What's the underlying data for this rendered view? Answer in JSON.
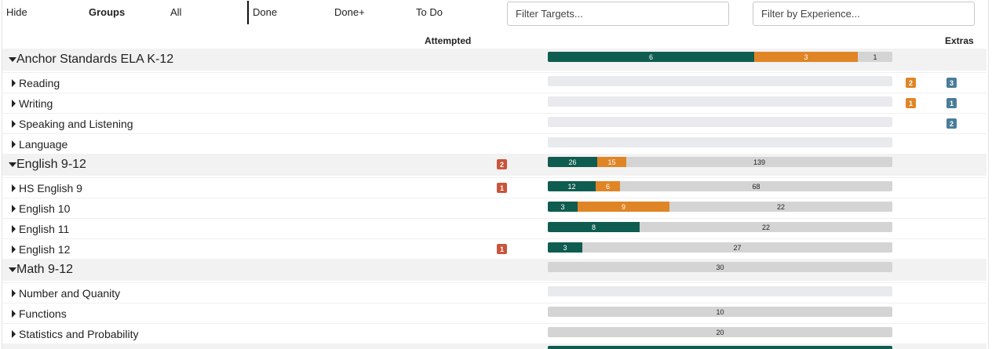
{
  "filters": {
    "hide": "Hide",
    "groups": "Groups",
    "all": "All",
    "done": "Done",
    "done_plus": "Done+",
    "to_do": "To Do",
    "targets_placeholder": "Filter Targets...",
    "experience_placeholder": "Filter by Experience..."
  },
  "columns": {
    "attempted": "Attempted",
    "extras": "Extras"
  },
  "colors": {
    "done": "#0f5c50",
    "done_plus": "#e08526",
    "todo": "#d4d4d4",
    "attempted_badge": "#c9553a",
    "extra_badge": "#4a7c99"
  },
  "rows": [
    {
      "label": "Anchor Standards ELA K-12",
      "bar": {
        "done": "6",
        "done_plus": "3",
        "todo": "1"
      }
    },
    {
      "label": "Reading",
      "extras_orange": "2",
      "extras_blue": "3"
    },
    {
      "label": "Writing",
      "extras_orange": "1",
      "extras_blue": "1"
    },
    {
      "label": "Speaking and Listening",
      "extras_blue": "2"
    },
    {
      "label": "Language"
    },
    {
      "label": "English 9-12",
      "attempted": "2",
      "bar": {
        "done": "26",
        "done_plus": "15",
        "todo": "139"
      }
    },
    {
      "label": "HS English 9",
      "attempted": "1",
      "bar": {
        "done": "12",
        "done_plus": "6",
        "todo": "68"
      }
    },
    {
      "label": "English 10",
      "bar": {
        "done": "3",
        "done_plus": "9",
        "todo": "22"
      }
    },
    {
      "label": "English 11",
      "bar": {
        "done": "8",
        "todo": "22"
      }
    },
    {
      "label": "English 12",
      "attempted": "1",
      "bar": {
        "done": "3",
        "todo": "27"
      }
    },
    {
      "label": "Math 9-12",
      "bar": {
        "todo": "30"
      }
    },
    {
      "label": "Number and Quanity"
    },
    {
      "label": "Functions",
      "bar": {
        "todo": "10"
      }
    },
    {
      "label": "Statistics and Probability",
      "bar": {
        "todo": "20"
      }
    }
  ]
}
